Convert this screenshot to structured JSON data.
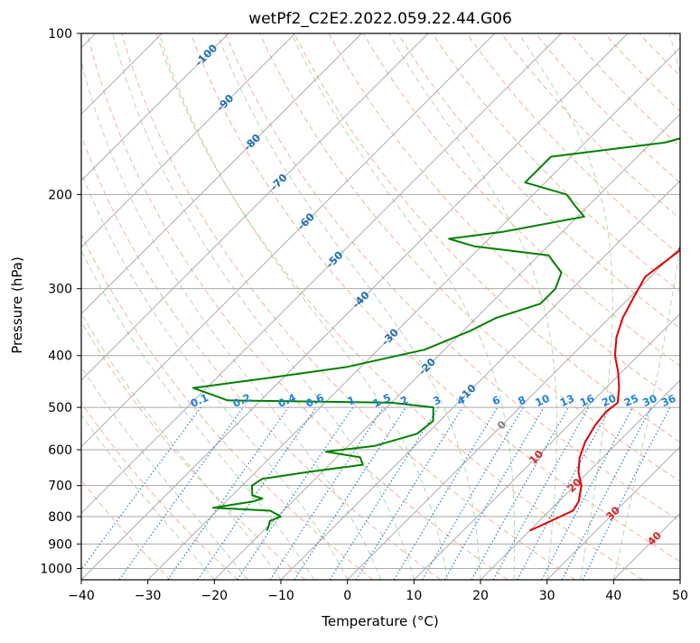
{
  "chart_data": {
    "type": "line",
    "chart_kind": "skew-t log-p diagram",
    "title": "wetPf2_C2E2.2022.059.22.44.G06",
    "xlabel": "Temperature (°C)",
    "ylabel": "Pressure (hPa)",
    "xlim": [
      -40,
      50
    ],
    "ylim": [
      1050,
      100
    ],
    "y_scale": "log",
    "x_ticks": [
      -40,
      -30,
      -20,
      -10,
      0,
      10,
      20,
      30,
      40,
      50
    ],
    "y_ticks": [
      1000,
      900,
      800,
      700,
      600,
      500,
      400,
      300,
      200,
      100
    ],
    "grid": true,
    "colors": {
      "temperature": "#e00000",
      "dewpoint": "#008000",
      "isotherm": "#999999",
      "isobar": "#aaaaaa",
      "dry_adiabat": "#f4a582",
      "moist_adiabat": "#a6d8a6",
      "mixing_ratio": "#1f7fe0",
      "neg_isotherm_label": "#1f6fb4",
      "pos_isotherm_label": "#d62728"
    },
    "series": [
      {
        "id": "temperature",
        "points": [
          {
            "p": 850,
            "t": 20.0
          },
          {
            "p": 820,
            "t": 21.5
          },
          {
            "p": 780,
            "t": 23.5
          },
          {
            "p": 750,
            "t": 23.0
          },
          {
            "p": 700,
            "t": 21.0
          },
          {
            "p": 660,
            "t": 18.5
          },
          {
            "p": 620,
            "t": 16.5
          },
          {
            "p": 580,
            "t": 15.0
          },
          {
            "p": 540,
            "t": 14.0
          },
          {
            "p": 510,
            "t": 13.6
          },
          {
            "p": 490,
            "t": 14.0
          },
          {
            "p": 460,
            "t": 12.0
          },
          {
            "p": 430,
            "t": 9.5
          },
          {
            "p": 400,
            "t": 6.5
          },
          {
            "p": 370,
            "t": 4.0
          },
          {
            "p": 340,
            "t": 2.0
          },
          {
            "p": 310,
            "t": 0.5
          },
          {
            "p": 285,
            "t": -0.8
          },
          {
            "p": 270,
            "t": -0.2
          },
          {
            "p": 255,
            "t": 0.4
          },
          {
            "p": 240,
            "t": -1.0
          },
          {
            "p": 220,
            "t": -3.0
          },
          {
            "p": 200,
            "t": -5.0
          },
          {
            "p": 180,
            "t": -7.0
          },
          {
            "p": 160,
            "t": -8.7
          },
          {
            "p": 145,
            "t": -11.0
          },
          {
            "p": 130,
            "t": -13.0
          },
          {
            "p": 115,
            "t": -14.8
          },
          {
            "p": 105,
            "t": -16.5
          },
          {
            "p": 100,
            "t": -17.5
          }
        ]
      },
      {
        "id": "dewpoint",
        "points": [
          {
            "p": 850,
            "t": -19.5
          },
          {
            "p": 830,
            "t": -20.0
          },
          {
            "p": 815,
            "t": -20.5
          },
          {
            "p": 800,
            "t": -19.5
          },
          {
            "p": 780,
            "t": -22.0
          },
          {
            "p": 770,
            "t": -31.0
          },
          {
            "p": 750,
            "t": -26.0
          },
          {
            "p": 740,
            "t": -25.0
          },
          {
            "p": 730,
            "t": -27.0
          },
          {
            "p": 700,
            "t": -28.5
          },
          {
            "p": 680,
            "t": -28.0
          },
          {
            "p": 660,
            "t": -22.0
          },
          {
            "p": 640,
            "t": -15.0
          },
          {
            "p": 620,
            "t": -16.5
          },
          {
            "p": 605,
            "t": -22.5
          },
          {
            "p": 590,
            "t": -16.0
          },
          {
            "p": 560,
            "t": -11.5
          },
          {
            "p": 530,
            "t": -11.0
          },
          {
            "p": 500,
            "t": -13.0
          },
          {
            "p": 490,
            "t": -20.0
          },
          {
            "p": 485,
            "t": -45.0
          },
          {
            "p": 460,
            "t": -52.0
          },
          {
            "p": 440,
            "t": -42.0
          },
          {
            "p": 420,
            "t": -32.0
          },
          {
            "p": 390,
            "t": -23.0
          },
          {
            "p": 360,
            "t": -19.0
          },
          {
            "p": 340,
            "t": -17.0
          },
          {
            "p": 320,
            "t": -12.5
          },
          {
            "p": 300,
            "t": -12.5
          },
          {
            "p": 280,
            "t": -14.0
          },
          {
            "p": 260,
            "t": -18.5
          },
          {
            "p": 250,
            "t": -31.0
          },
          {
            "p": 242,
            "t": -36.0
          },
          {
            "p": 235,
            "t": -29.0
          },
          {
            "p": 220,
            "t": -19.0
          },
          {
            "p": 210,
            "t": -22.0
          },
          {
            "p": 200,
            "t": -25.0
          },
          {
            "p": 190,
            "t": -33.0
          },
          {
            "p": 170,
            "t": -33.0
          },
          {
            "p": 160,
            "t": -18.0
          },
          {
            "p": 150,
            "t": -12.0
          },
          {
            "p": 140,
            "t": -11.0
          },
          {
            "p": 130,
            "t": -9.0
          },
          {
            "p": 115,
            "t": -4.0
          },
          {
            "p": 100,
            "t": -1.0
          }
        ]
      }
    ],
    "isotherm_labels": [
      "-100",
      "-90",
      "-80",
      "-70",
      "-60",
      "-50",
      "-40",
      "-30",
      "-20",
      "-10",
      "0",
      "10",
      "20",
      "30",
      "40"
    ],
    "isotherm_label_values": [
      -100,
      -90,
      -80,
      -70,
      -60,
      -50,
      -40,
      -30,
      -20,
      -10,
      0,
      10,
      20,
      30,
      40
    ],
    "mixing_ratio_labels": [
      "0.1",
      "0.2",
      "0.4",
      "0.6",
      "1",
      "1.5",
      "2",
      "3",
      "4",
      "6",
      "8",
      "10",
      "13",
      "16",
      "20",
      "25",
      "30",
      "36"
    ],
    "mixing_ratio_values": [
      0.1,
      0.2,
      0.4,
      0.6,
      1,
      1.5,
      2,
      3,
      4,
      6,
      8,
      10,
      13,
      16,
      20,
      25,
      30,
      36
    ]
  }
}
